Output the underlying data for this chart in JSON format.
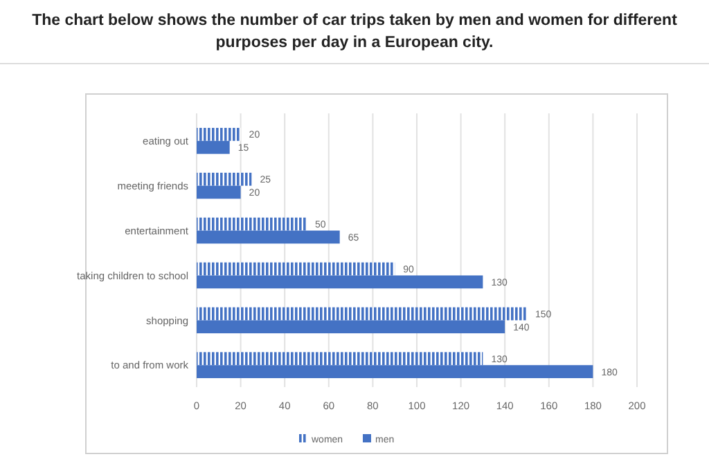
{
  "chart_data": {
    "type": "bar",
    "orientation": "horizontal",
    "title": "The chart below shows the number of car trips taken by men and women for different purposes per day in a European city.",
    "categories": [
      "eating out",
      "meeting friends",
      "entertainment",
      "taking children to school",
      "shopping",
      "to and from work"
    ],
    "series": [
      {
        "name": "women",
        "color": "#4472c4",
        "values": [
          20,
          25,
          50,
          90,
          150,
          130
        ]
      },
      {
        "name": "men",
        "color": "#4472c4",
        "values": [
          15,
          20,
          65,
          130,
          140,
          180
        ]
      }
    ],
    "xlim": [
      0,
      200
    ],
    "xticks": [
      0,
      20,
      40,
      60,
      80,
      100,
      120,
      140,
      160,
      180,
      200
    ],
    "grid": "x",
    "data_labels": true,
    "legend": "bottom"
  }
}
